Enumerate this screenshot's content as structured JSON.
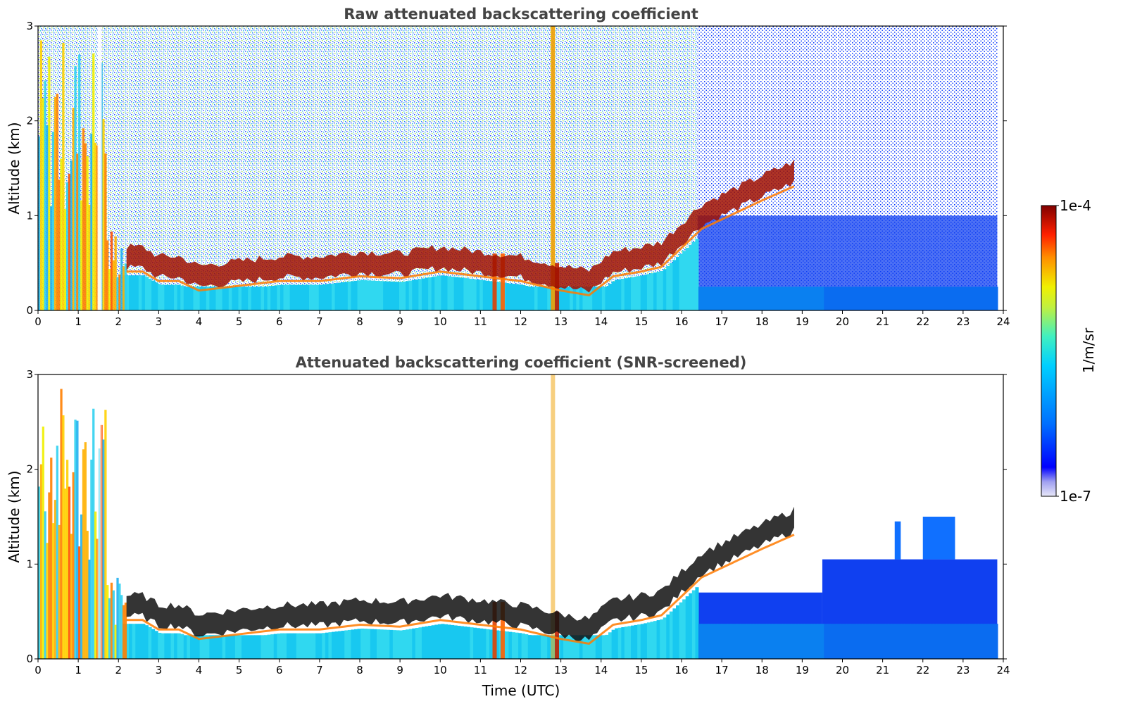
{
  "chart_data": [
    {
      "type": "heatmap",
      "title": "Raw attenuated backscattering coefficient",
      "xlabel": "",
      "ylabel": "Altitude (km)",
      "xlim": [
        0,
        24
      ],
      "ylim": [
        0,
        3
      ],
      "xticks": [
        "0",
        "1",
        "2",
        "3",
        "4",
        "5",
        "6",
        "7",
        "8",
        "9",
        "10",
        "11",
        "12",
        "13",
        "14",
        "15",
        "16",
        "17",
        "18",
        "19",
        "20",
        "21",
        "22",
        "23",
        "24"
      ],
      "yticks": [
        "0",
        "1",
        "2",
        "3"
      ],
      "screened": false,
      "layer_top_km": [
        [
          2.2,
          0.55
        ],
        [
          2.6,
          0.55
        ],
        [
          3,
          0.45
        ],
        [
          3.5,
          0.45
        ],
        [
          4,
          0.35
        ],
        [
          5,
          0.4
        ],
        [
          6,
          0.45
        ],
        [
          7,
          0.45
        ],
        [
          8,
          0.5
        ],
        [
          9,
          0.48
        ],
        [
          10,
          0.55
        ],
        [
          11,
          0.5
        ],
        [
          12,
          0.45
        ],
        [
          13,
          0.35
        ],
        [
          13.7,
          0.3
        ],
        [
          14.3,
          0.5
        ],
        [
          15,
          0.55
        ],
        [
          15.5,
          0.6
        ],
        [
          16,
          0.8
        ],
        [
          16.5,
          1.0
        ],
        [
          17,
          1.1
        ],
        [
          17.5,
          1.2
        ],
        [
          18,
          1.3
        ],
        [
          18.8,
          1.45
        ]
      ]
    },
    {
      "type": "heatmap",
      "title": "Attenuated backscattering coefficient (SNR-screened)",
      "xlabel": "Time (UTC)",
      "ylabel": "Altitude (km)",
      "xlim": [
        0,
        24
      ],
      "ylim": [
        0,
        3
      ],
      "xticks": [
        "0",
        "1",
        "2",
        "3",
        "4",
        "5",
        "6",
        "7",
        "8",
        "9",
        "10",
        "11",
        "12",
        "13",
        "14",
        "15",
        "16",
        "17",
        "18",
        "19",
        "20",
        "21",
        "22",
        "23",
        "24"
      ],
      "yticks": [
        "0",
        "1",
        "2",
        "3"
      ],
      "screened": true,
      "layer_top_km": [
        [
          2.2,
          0.55
        ],
        [
          2.6,
          0.55
        ],
        [
          3,
          0.45
        ],
        [
          3.5,
          0.45
        ],
        [
          4,
          0.35
        ],
        [
          5,
          0.4
        ],
        [
          6,
          0.45
        ],
        [
          7,
          0.45
        ],
        [
          8,
          0.5
        ],
        [
          9,
          0.48
        ],
        [
          10,
          0.55
        ],
        [
          11,
          0.5
        ],
        [
          12,
          0.45
        ],
        [
          13,
          0.35
        ],
        [
          13.7,
          0.3
        ],
        [
          14.3,
          0.5
        ],
        [
          15,
          0.55
        ],
        [
          15.5,
          0.6
        ],
        [
          16,
          0.8
        ],
        [
          16.5,
          1.0
        ],
        [
          17,
          1.1
        ],
        [
          17.5,
          1.2
        ],
        [
          18,
          1.3
        ],
        [
          18.8,
          1.45
        ]
      ]
    }
  ],
  "colorbar": {
    "label": "1/m/sr",
    "max_label": "1e-4",
    "min_label": "1e-7",
    "colors": [
      "#e8e8f8",
      "#c8c8f0",
      "#a0a0f0",
      "#0000ff",
      "#0050ff",
      "#00a0ff",
      "#00e0f0",
      "#40f0c0",
      "#a0f060",
      "#f0f000",
      "#ffa000",
      "#ff4000",
      "#e00000",
      "#800000"
    ]
  }
}
